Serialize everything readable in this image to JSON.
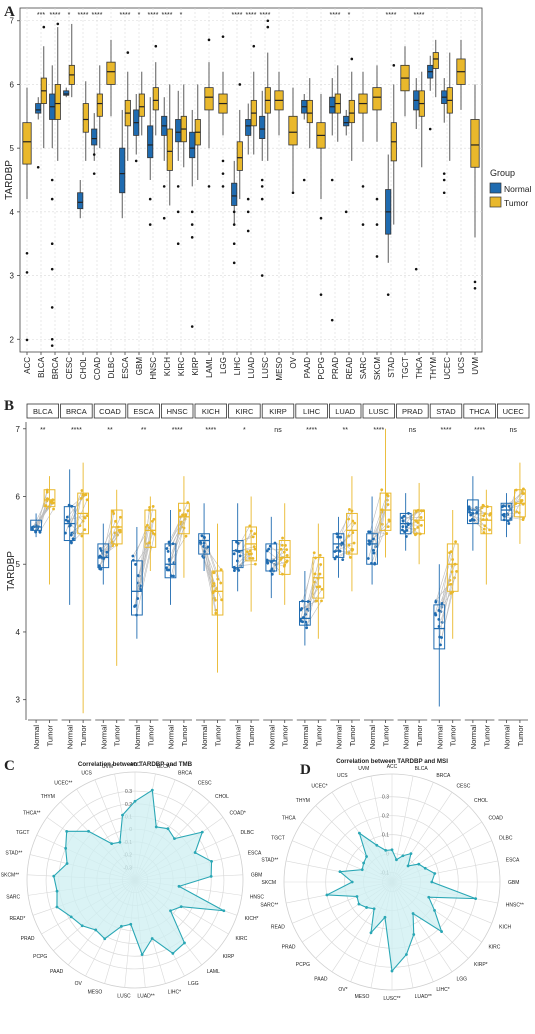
{
  "colors": {
    "normal": "#1f6bb0",
    "tumor": "#e9b82c",
    "radar_line": "#2aa7b5",
    "radar_fill": "#cdeff1",
    "grid": "#d9d9d9"
  },
  "chart_data": [
    {
      "panel": "A",
      "type": "box",
      "ylabel": "TARDBP",
      "ylim": [
        1.8,
        7.2
      ],
      "yticks": [
        2,
        3,
        4,
        5,
        6,
        7
      ],
      "legend": {
        "title": "Group",
        "items": [
          "Normal",
          "Tumor"
        ],
        "position": "right"
      },
      "categories": [
        "ACC",
        "BLCA",
        "BRCA",
        "CESC",
        "CHOL",
        "COAD",
        "DLBC",
        "ESCA",
        "GBM",
        "HNSC",
        "KICH",
        "KIRC",
        "KIRP",
        "LAML",
        "LGG",
        "LIHC",
        "LUAD",
        "LUSC",
        "MESO",
        "OV",
        "PAAD",
        "PCPG",
        "PRAD",
        "READ",
        "SARC",
        "SKCM",
        "STAD",
        "TGCT",
        "THCA",
        "THYM",
        "UCEC",
        "UCS",
        "UVM"
      ],
      "significance": [
        "",
        "***",
        "****",
        "*",
        "****",
        "****",
        "",
        "****",
        "*",
        "****",
        "****",
        "*",
        "",
        "",
        "",
        "****",
        "****",
        "****",
        "",
        "",
        "",
        "",
        "****",
        "*",
        "",
        "",
        "****",
        "",
        "****",
        "",
        "",
        "",
        ""
      ],
      "normal": [
        null,
        [
          5.45,
          5.55,
          5.6,
          5.7,
          5.8
        ],
        [
          5.0,
          5.45,
          5.65,
          5.85,
          6.3
        ],
        [
          5.8,
          5.83,
          5.85,
          5.9,
          5.95
        ],
        [
          3.9,
          4.05,
          4.15,
          4.3,
          4.5
        ],
        [
          4.8,
          5.05,
          5.15,
          5.3,
          5.55
        ],
        null,
        [
          3.9,
          4.3,
          4.6,
          5.0,
          5.6
        ],
        [
          4.9,
          5.2,
          5.4,
          5.6,
          5.85
        ],
        [
          4.5,
          4.85,
          5.05,
          5.35,
          5.8
        ],
        [
          4.8,
          5.2,
          5.35,
          5.5,
          5.8
        ],
        [
          4.8,
          5.1,
          5.25,
          5.45,
          5.9
        ],
        [
          4.4,
          4.85,
          5.0,
          5.25,
          5.6
        ],
        null,
        null,
        [
          3.8,
          4.1,
          4.25,
          4.45,
          4.8
        ],
        [
          4.9,
          5.2,
          5.35,
          5.45,
          5.7
        ],
        [
          4.8,
          5.15,
          5.3,
          5.5,
          5.9
        ],
        null,
        null,
        [
          5.45,
          5.55,
          5.65,
          5.75,
          5.85
        ],
        null,
        [
          5.2,
          5.55,
          5.65,
          5.8,
          6.1
        ],
        [
          5.2,
          5.35,
          5.4,
          5.5,
          5.6
        ],
        null,
        null,
        [
          3.2,
          3.65,
          4.0,
          4.35,
          4.9
        ],
        null,
        [
          5.3,
          5.6,
          5.75,
          5.9,
          6.1
        ],
        [
          5.9,
          6.1,
          6.2,
          6.3,
          6.45
        ],
        [
          5.4,
          5.7,
          5.8,
          5.9,
          6.1
        ],
        null,
        null
      ],
      "tumor": [
        [
          4.2,
          4.75,
          5.1,
          5.4,
          5.95
        ],
        [
          5.0,
          5.7,
          5.9,
          6.1,
          6.6
        ],
        [
          4.8,
          5.45,
          5.7,
          6.0,
          6.9
        ],
        [
          5.8,
          6.0,
          6.15,
          6.3,
          6.95
        ],
        [
          4.8,
          5.25,
          5.45,
          5.7,
          6.05
        ],
        [
          5.0,
          5.5,
          5.7,
          5.85,
          6.3
        ],
        [
          5.5,
          6.0,
          6.2,
          6.35,
          6.7
        ],
        [
          4.8,
          5.35,
          5.55,
          5.75,
          6.2
        ],
        [
          5.2,
          5.5,
          5.65,
          5.85,
          6.2
        ],
        [
          5.2,
          5.6,
          5.75,
          5.95,
          6.35
        ],
        [
          4.1,
          4.65,
          4.95,
          5.3,
          6.0
        ],
        [
          4.7,
          5.1,
          5.3,
          5.5,
          6.0
        ],
        [
          4.5,
          5.05,
          5.25,
          5.45,
          6.0
        ],
        [
          5.0,
          5.6,
          5.8,
          5.95,
          6.35
        ],
        [
          5.2,
          5.55,
          5.7,
          5.85,
          6.2
        ],
        [
          4.2,
          4.65,
          4.85,
          5.1,
          5.6
        ],
        [
          4.9,
          5.35,
          5.55,
          5.75,
          6.2
        ],
        [
          4.8,
          5.55,
          5.75,
          5.95,
          6.5
        ],
        [
          5.2,
          5.6,
          5.75,
          5.9,
          6.2
        ],
        [
          4.3,
          5.05,
          5.25,
          5.5,
          5.95
        ],
        [
          5.0,
          5.4,
          5.55,
          5.75,
          6.1
        ],
        [
          4.2,
          5.0,
          5.2,
          5.4,
          5.85
        ],
        [
          5.1,
          5.55,
          5.7,
          5.85,
          6.3
        ],
        [
          4.8,
          5.4,
          5.55,
          5.75,
          6.2
        ],
        [
          5.1,
          5.55,
          5.7,
          5.85,
          6.2
        ],
        [
          5.1,
          5.6,
          5.8,
          5.95,
          6.3
        ],
        [
          3.8,
          4.8,
          5.1,
          5.4,
          6.0
        ],
        [
          5.5,
          5.9,
          6.1,
          6.3,
          6.6
        ],
        [
          4.7,
          5.5,
          5.7,
          5.9,
          6.2
        ],
        [
          5.8,
          6.25,
          6.4,
          6.5,
          6.7
        ],
        [
          4.8,
          5.55,
          5.75,
          5.95,
          6.5
        ],
        [
          5.6,
          6.0,
          6.2,
          6.4,
          6.7
        ],
        [
          3.6,
          4.7,
          5.05,
          5.45,
          6.0
        ]
      ],
      "outliers_low": [
        [
          1.99,
          3.05,
          3.35
        ],
        [
          4.7
        ],
        [
          2.0,
          1.9,
          2.5,
          3.1,
          3.5,
          4.2,
          4.5
        ],
        [],
        [],
        [
          4.6,
          4.9
        ],
        [],
        [],
        [
          4.8
        ],
        [
          3.8,
          4.2
        ],
        [
          3.9,
          4.4
        ],
        [
          4.0,
          4.4,
          3.5
        ],
        [
          2.2,
          3.6,
          3.8,
          4.0
        ],
        [
          4.4
        ],
        [
          4.4,
          4.6,
          4.8
        ],
        [
          3.2,
          3.5,
          3.8,
          4.0
        ],
        [
          3.7,
          4.0,
          4.2
        ],
        [
          4.2,
          4.4,
          4.5,
          3.0
        ],
        [],
        [
          4.3
        ],
        [
          4.5
        ],
        [
          2.7,
          3.9
        ],
        [
          2.3,
          4.5
        ],
        [
          4.0
        ],
        [
          3.8,
          4.4
        ],
        [
          3.3,
          3.8,
          4.2
        ],
        [
          2.7
        ],
        [],
        [
          3.1
        ],
        [
          5.3
        ],
        [
          4.3,
          4.5,
          4.6
        ],
        [],
        [
          2.8,
          2.9
        ]
      ],
      "outliers_high": [
        [],
        [
          6.9
        ],
        [
          6.95
        ],
        [],
        [],
        [],
        [],
        [
          6.5
        ],
        [],
        [
          6.6
        ],
        [],
        [],
        [],
        [
          6.7
        ],
        [
          6.75
        ],
        [
          6.0
        ],
        [
          6.6
        ],
        [
          6.9,
          7.0
        ],
        [],
        [],
        [],
        [],
        [],
        [
          6.4
        ],
        [],
        [],
        [
          6.3
        ],
        [],
        [],
        [],
        [],
        [],
        []
      ]
    },
    {
      "panel": "B",
      "type": "paired-box",
      "ylabel": "TARDBP",
      "ylim": [
        2.7,
        7.1
      ],
      "yticks": [
        3,
        4,
        5,
        6,
        7
      ],
      "facets": [
        "BLCA",
        "BRCA",
        "COAD",
        "ESCA",
        "HNSC",
        "KICH",
        "KIRC",
        "KIRP",
        "LIHC",
        "LUAD",
        "LUSC",
        "PRAD",
        "STAD",
        "THCA",
        "UCEC"
      ],
      "xlabels": [
        "Normal",
        "Tumor"
      ],
      "significance": [
        "**",
        "****",
        "**",
        "**",
        "****",
        "****",
        "*",
        "ns",
        "****",
        "**",
        "****",
        "ns",
        "****",
        "****",
        "ns"
      ],
      "normal": [
        [
          5.4,
          5.5,
          5.55,
          5.65,
          5.75
        ],
        [
          4.4,
          5.35,
          5.6,
          5.85,
          6.4
        ],
        [
          4.7,
          4.95,
          5.1,
          5.3,
          5.6
        ],
        [
          3.9,
          4.25,
          4.6,
          5.05,
          5.55
        ],
        [
          4.4,
          4.8,
          5.0,
          5.3,
          5.8
        ],
        [
          4.9,
          5.15,
          5.35,
          5.45,
          5.9
        ],
        [
          4.6,
          4.95,
          5.2,
          5.35,
          5.9
        ],
        [
          4.5,
          4.9,
          5.05,
          5.3,
          5.7
        ],
        [
          3.8,
          4.1,
          4.2,
          4.45,
          4.9
        ],
        [
          4.8,
          5.1,
          5.3,
          5.45,
          5.7
        ],
        [
          4.7,
          5.0,
          5.3,
          5.45,
          6.0
        ],
        [
          5.2,
          5.45,
          5.6,
          5.75,
          6.05
        ],
        [
          2.9,
          3.75,
          4.05,
          4.4,
          5.0
        ],
        [
          5.2,
          5.6,
          5.8,
          5.95,
          6.3
        ],
        [
          5.4,
          5.65,
          5.8,
          5.9,
          6.05
        ]
      ],
      "tumor": [
        [
          4.7,
          5.85,
          5.95,
          6.1,
          6.3
        ],
        [
          2.8,
          5.45,
          5.75,
          6.05,
          6.5
        ],
        [
          3.5,
          5.3,
          5.55,
          5.8,
          6.1
        ],
        [
          4.9,
          5.25,
          5.5,
          5.8,
          6.0
        ],
        [
          4.8,
          5.45,
          5.7,
          5.9,
          6.3
        ],
        [
          3.4,
          4.25,
          4.6,
          4.9,
          5.6
        ],
        [
          4.3,
          5.05,
          5.3,
          5.55,
          6.0
        ],
        [
          4.4,
          4.85,
          5.1,
          5.35,
          5.9
        ],
        [
          3.9,
          4.5,
          4.8,
          5.1,
          5.6
        ],
        [
          4.6,
          5.15,
          5.5,
          5.75,
          6.3
        ],
        [
          5.1,
          5.5,
          5.8,
          6.05,
          7.0
        ],
        [
          5.0,
          5.45,
          5.65,
          5.8,
          6.2
        ],
        [
          3.9,
          4.6,
          5.0,
          5.3,
          5.8
        ],
        [
          4.7,
          5.45,
          5.65,
          5.85,
          6.1
        ],
        [
          5.3,
          5.7,
          5.9,
          6.1,
          6.5
        ]
      ]
    },
    {
      "panel": "C",
      "type": "radar",
      "title": "Correlation between TARDBP and TMB",
      "rings": [
        -0.3,
        -0.2,
        -0.1,
        0,
        0.1,
        0.2,
        0.3
      ],
      "ring_labels": [
        "-0.3",
        "-0.2",
        "-0.1",
        "0",
        "0.1",
        "0.2",
        "0.3"
      ],
      "rlim": [
        -0.4,
        0.45
      ],
      "categories": [
        "ACC",
        "BLCA**",
        "BRCA",
        "CESC",
        "CHOL",
        "COAD*",
        "DLBC",
        "ESCA",
        "GBM",
        "HNSC",
        "KICH*",
        "KIRC",
        "KIRP",
        "LAML",
        "LGG",
        "LIHC*",
        "LUAD**",
        "LUSC",
        "MESO",
        "OV",
        "PAAD",
        "PCPG",
        "PRAD",
        "READ*",
        "SARC",
        "SKCM**",
        "STAD**",
        "TGCT",
        "THCA**",
        "THYM",
        "UCEC**",
        "UCS",
        "UVM"
      ],
      "values": [
        0.22,
        0.32,
        0.05,
        0.08,
        0.05,
        0.25,
        0.12,
        0.22,
        0.2,
        -0.05,
        0.34,
        0.02,
        -0.03,
        0.23,
        0.25,
        0.08,
        0.19,
        -0.05,
        -0.02,
        0.12,
        0.1,
        0.15,
        0.18,
        0.25,
        0.22,
        0.24,
        0.15,
        0.2,
        0.26,
        0.13,
        -0.06,
        -0.08,
        0.12
      ]
    },
    {
      "panel": "D",
      "type": "radar",
      "title": "Correlation between TARDBP and MSI",
      "rings": [
        -0.1,
        0,
        0.1,
        0.2,
        0.3
      ],
      "ring_labels": [
        "-0.1",
        "0",
        "0.1",
        "0.2",
        "0.3"
      ],
      "rlim": [
        -0.15,
        0.42
      ],
      "categories": [
        "ACC",
        "BLCA",
        "BRCA",
        "CESC",
        "CHOL",
        "COAD",
        "DLBC",
        "ESCA",
        "GBM",
        "HNSC**",
        "KICH",
        "KIRC",
        "KIRP*",
        "LGG",
        "LIHC*",
        "LUAD**",
        "LUSC**",
        "MESO",
        "OV*",
        "PAAD",
        "PCPG",
        "PRAD",
        "READ",
        "SARC**",
        "SKCM",
        "STAD**",
        "TGCT",
        "THCA",
        "THYM",
        "UCEC*",
        "UCS",
        "UVM"
      ],
      "values": [
        0.02,
        -0.03,
        0.0,
        0.03,
        -0.03,
        0.02,
        0.04,
        0.08,
        0.06,
        0.3,
        0.06,
        0.12,
        0.22,
        0.05,
        0.15,
        0.24,
        0.32,
        0.04,
        0.14,
        0.02,
        0.04,
        0.06,
        0.05,
        0.2,
        0.06,
        0.13,
        0.02,
        0.03,
        0.04,
        0.16,
        0.06,
        0.02
      ]
    }
  ]
}
